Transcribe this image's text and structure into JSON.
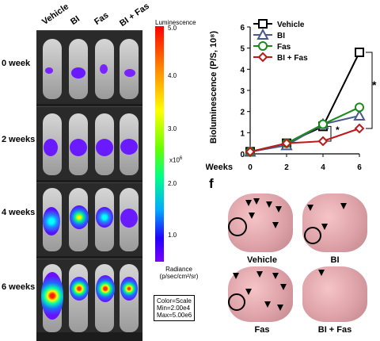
{
  "imaging_panel": {
    "columns": [
      "Vehicle",
      "BI",
      "Fas",
      "BI + Fas"
    ],
    "rows": [
      "0 week",
      "2 weeks",
      "4 weeks",
      "6 weeks"
    ],
    "colorbar": {
      "title": "Luminescence",
      "ticks": [
        "5.0",
        "4.0",
        "3.0",
        "2.0",
        "1.0"
      ],
      "multiplier": "x10",
      "multiplier_exp": "6",
      "unit_line1": "Radiance",
      "unit_line2": "(p/sec/cm²/sr)",
      "scale_line1": "Color=Scale",
      "scale_line2": "Min=2.00e4",
      "scale_line3": "Max=5.00e6"
    }
  },
  "chart_data": {
    "type": "line",
    "ylabel": "Bioluminescence (P/S, 10⁸)",
    "xlabel": "Weeks",
    "x": [
      0,
      2,
      4,
      6
    ],
    "ylim": [
      0,
      6
    ],
    "yticks": [
      0,
      1,
      2,
      3,
      4,
      5,
      6
    ],
    "grid": false,
    "legend_position": "top-left",
    "series": [
      {
        "name": "Vehicle",
        "values": [
          0.1,
          0.5,
          1.3,
          4.8
        ],
        "color": "#000000",
        "marker": "square"
      },
      {
        "name": "BI",
        "values": [
          0.1,
          0.4,
          1.4,
          1.8
        ],
        "color": "#4a5a8a",
        "marker": "triangle"
      },
      {
        "name": "Fas",
        "values": [
          0.1,
          0.5,
          1.4,
          2.2
        ],
        "color": "#1a8a1a",
        "marker": "circle"
      },
      {
        "name": "BI + Fas",
        "values": [
          0.1,
          0.5,
          0.6,
          1.2
        ],
        "color": "#c01818",
        "marker": "diamond"
      }
    ],
    "annotations": [
      "*",
      "*"
    ]
  },
  "lung_panel": {
    "letter": "f",
    "labels": [
      "Vehicle",
      "BI",
      "Fas",
      "BI + Fas"
    ]
  }
}
